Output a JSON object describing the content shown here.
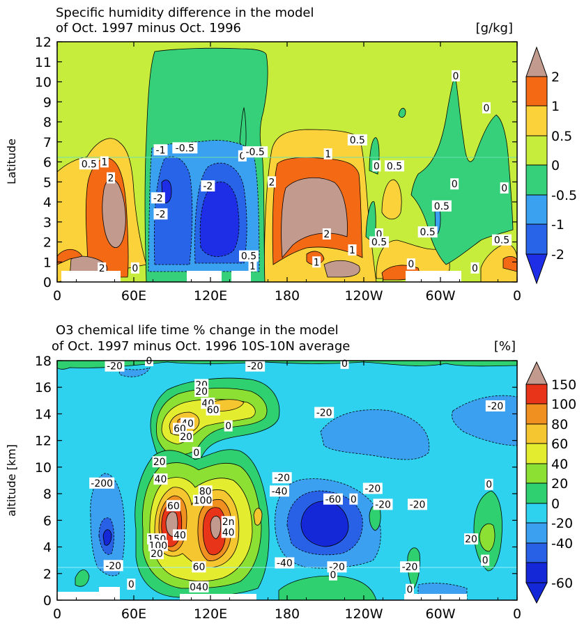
{
  "colors": {
    "hum": {
      "le_-2": "#1e2ee6",
      "n2_n1": "#2864e8",
      "n1_n05": "#3aa0f0",
      "n05_0": "#36d07a",
      "0_05": "#c6ec3c",
      "05_1": "#fbd23a",
      "1_2": "#f46a14",
      "gt_2": "#c39a8e"
    },
    "o3": {
      "le_-60": "#1428d8",
      "n60_n40": "#2860e6",
      "n40_n20": "#3ca0f0",
      "n20_0": "#2ed2ee",
      "0_20": "#2ed070",
      "20_40": "#8ce034",
      "40_60": "#e4ec30",
      "60_80": "#f6c630",
      "80_100": "#f09020",
      "100_150": "#e83418",
      "gt_150": "#c39a8e"
    },
    "missing": "#ffffff"
  },
  "chart_data": [
    {
      "type": "contour",
      "title": "Specific humidity difference in the model",
      "subtitle": "of Oct. 1997 minus Oct. 1996",
      "units": "[g/kg]",
      "ylabel": "Latitude",
      "xlabel": "",
      "x_ticks": [
        "0",
        "60E",
        "120E",
        "180",
        "120W",
        "60W",
        "0"
      ],
      "y_ticks": [
        "0",
        "1",
        "2",
        "3",
        "4",
        "5",
        "6",
        "7",
        "8",
        "9",
        "10",
        "11",
        "12"
      ],
      "ylim": [
        0,
        12
      ],
      "xlim": [
        0,
        360
      ],
      "colorbar_levels": [
        "2",
        "1",
        "0.5",
        "0",
        "-0.5",
        "-1",
        "-2"
      ],
      "contour_labels": [
        {
          "text": "0.5",
          "lon": 25,
          "lat": 5.9
        },
        {
          "text": "1",
          "lon": 37,
          "lat": 6.0
        },
        {
          "text": "2",
          "lon": 42,
          "lat": 5.2
        },
        {
          "text": "2",
          "lon": 35,
          "lat": 0.7
        },
        {
          "text": "0",
          "lon": 61,
          "lat": 0.7
        },
        {
          "text": "-1",
          "lon": 81,
          "lat": 6.6
        },
        {
          "text": "-0.5",
          "lon": 100,
          "lat": 6.7
        },
        {
          "text": "-2",
          "lon": 79,
          "lat": 4.2
        },
        {
          "text": "-2",
          "lon": 81,
          "lat": 3.4
        },
        {
          "text": "-2",
          "lon": 118,
          "lat": 4.8
        },
        {
          "text": "0",
          "lon": 145,
          "lat": 6.3
        },
        {
          "text": "-0.5",
          "lon": 155,
          "lat": 6.5
        },
        {
          "text": "0.5",
          "lon": 150,
          "lat": 1.3
        },
        {
          "text": "1",
          "lon": 153,
          "lat": 0.8
        },
        {
          "text": "1",
          "lon": 212,
          "lat": 6.4
        },
        {
          "text": "0.5",
          "lon": 235,
          "lat": 7.1
        },
        {
          "text": "2",
          "lon": 168,
          "lat": 5.0
        },
        {
          "text": "2",
          "lon": 211,
          "lat": 2.4
        },
        {
          "text": "1",
          "lon": 231,
          "lat": 1.6
        },
        {
          "text": "1",
          "lon": 203,
          "lat": 1.0
        },
        {
          "text": "0",
          "lon": 250,
          "lat": 5.8
        },
        {
          "text": "0.5",
          "lon": 264,
          "lat": 5.8
        },
        {
          "text": "0",
          "lon": 252,
          "lat": 2.4
        },
        {
          "text": "0.5",
          "lon": 252,
          "lat": 2.0
        },
        {
          "text": "0",
          "lon": 277,
          "lat": 0.9
        },
        {
          "text": "0",
          "lon": 312,
          "lat": 10.3
        },
        {
          "text": "0",
          "lon": 336,
          "lat": 8.7
        },
        {
          "text": "0",
          "lon": 311,
          "lat": 4.9
        },
        {
          "text": "0.5",
          "lon": 301,
          "lat": 3.8
        },
        {
          "text": "0.5",
          "lon": 290,
          "lat": 2.5
        },
        {
          "text": "0",
          "lon": 350,
          "lat": 4.7
        },
        {
          "text": "0.5",
          "lon": 348,
          "lat": 2.1
        },
        {
          "text": "0",
          "lon": 327,
          "lat": 0.7
        }
      ]
    },
    {
      "type": "contour",
      "title": "O3 chemical life time % change in the model",
      "subtitle": "of Oct. 1997 minus Oct. 1996   10S-10N average",
      "units": "[%]",
      "ylabel": "altitude [km]",
      "xlabel": "",
      "x_ticks": [
        "0",
        "60E",
        "120E",
        "180",
        "120W",
        "60W",
        "0"
      ],
      "y_ticks": [
        "0",
        "2",
        "4",
        "6",
        "8",
        "10",
        "12",
        "14",
        "16",
        "18"
      ],
      "ylim": [
        0,
        18
      ],
      "xlim": [
        0,
        360
      ],
      "colorbar_levels": [
        "150",
        "100",
        "80",
        "60",
        "40",
        "20",
        "0",
        "-20",
        "-40",
        "-60"
      ],
      "contour_labels": [
        {
          "text": "-20",
          "lon": 45,
          "lat": 17.6
        },
        {
          "text": "0",
          "lon": 72,
          "lat": 18.0
        },
        {
          "text": "-20",
          "lon": 155,
          "lat": 17.6
        },
        {
          "text": "0",
          "lon": 225,
          "lat": 17.8
        },
        {
          "text": "20",
          "lon": 113,
          "lat": 16.2
        },
        {
          "text": "20",
          "lon": 113,
          "lat": 15.7
        },
        {
          "text": "40",
          "lon": 118,
          "lat": 14.8
        },
        {
          "text": "60",
          "lon": 122,
          "lat": 14.3
        },
        {
          "text": "40",
          "lon": 102,
          "lat": 13.3
        },
        {
          "text": "60",
          "lon": 96,
          "lat": 12.9
        },
        {
          "text": "20",
          "lon": 101,
          "lat": 12.3
        },
        {
          "text": "0",
          "lon": 134,
          "lat": 13.1
        },
        {
          "text": "0",
          "lon": 109,
          "lat": 11.1
        },
        {
          "text": "-20",
          "lon": 209,
          "lat": 14.1
        },
        {
          "text": "-20",
          "lon": 343,
          "lat": 14.6
        },
        {
          "text": "20",
          "lon": 80,
          "lat": 10.4
        },
        {
          "text": "40",
          "lon": 81,
          "lat": 9.1
        },
        {
          "text": "-200",
          "lon": 35,
          "lat": 8.8
        },
        {
          "text": "-20",
          "lon": 176,
          "lat": 9.2
        },
        {
          "text": "-40",
          "lon": 174,
          "lat": 8.2
        },
        {
          "text": "80",
          "lon": 116,
          "lat": 8.2
        },
        {
          "text": "100",
          "lon": 114,
          "lat": 7.5
        },
        {
          "text": "60",
          "lon": 91,
          "lat": 7.1
        },
        {
          "text": "2n",
          "lon": 134,
          "lat": 5.9
        },
        {
          "text": "40",
          "lon": 134,
          "lat": 5.1
        },
        {
          "text": "40",
          "lon": 96,
          "lat": 4.9
        },
        {
          "text": "150",
          "lon": 78,
          "lat": 4.6
        },
        {
          "text": "100",
          "lon": 79,
          "lat": 4.1
        },
        {
          "text": "20",
          "lon": 78,
          "lat": 3.5
        },
        {
          "text": "-20",
          "lon": 44,
          "lat": 2.6
        },
        {
          "text": "0",
          "lon": 58,
          "lat": 1.2
        },
        {
          "text": "60",
          "lon": 111,
          "lat": 2.5
        },
        {
          "text": "040",
          "lon": 111,
          "lat": 1.0
        },
        {
          "text": "-60",
          "lon": 216,
          "lat": 7.6
        },
        {
          "text": "0",
          "lon": 232,
          "lat": 7.6
        },
        {
          "text": "-20",
          "lon": 247,
          "lat": 8.4
        },
        {
          "text": "-20",
          "lon": 255,
          "lat": 7.2
        },
        {
          "text": "-20",
          "lon": 282,
          "lat": 7.2
        },
        {
          "text": "0",
          "lon": 338,
          "lat": 8.7
        },
        {
          "text": "20",
          "lon": 324,
          "lat": 4.6
        },
        {
          "text": "-40",
          "lon": 178,
          "lat": 2.8
        },
        {
          "text": "-20",
          "lon": 219,
          "lat": 2.5
        },
        {
          "text": "0",
          "lon": 216,
          "lat": 1.9
        },
        {
          "text": "-20",
          "lon": 276,
          "lat": 2.5
        },
        {
          "text": "0",
          "lon": 335,
          "lat": 3.0
        },
        {
          "text": "0",
          "lon": 276,
          "lat": 0.8
        }
      ]
    }
  ]
}
